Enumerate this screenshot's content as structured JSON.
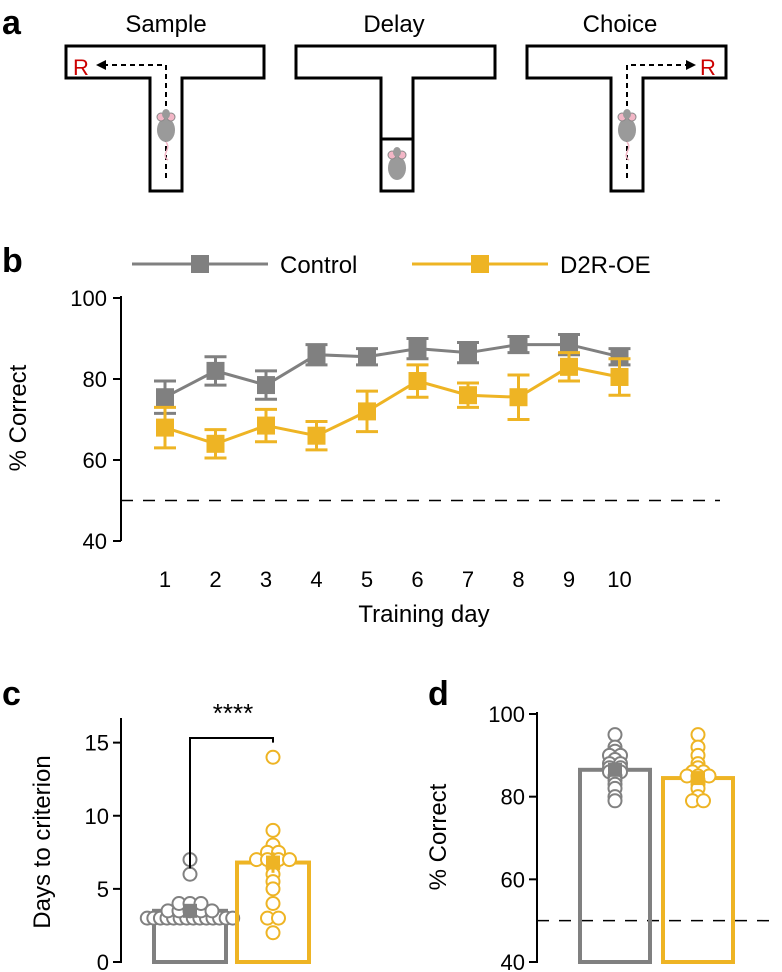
{
  "colors": {
    "control": "#808080",
    "d2r": "#EEB424",
    "reward": "#CC0000",
    "axis": "#000000"
  },
  "panel_a": {
    "label": "a",
    "titles": [
      "Sample",
      "Delay",
      "Choice"
    ],
    "reward_label": "R"
  },
  "panel_b": {
    "label": "b",
    "legend": [
      "Control",
      "D2R-OE"
    ]
  },
  "panel_c": {
    "label": "c",
    "significance": "****"
  },
  "panel_d": {
    "label": "d"
  },
  "chart_data": [
    {
      "panel": "b",
      "type": "line",
      "xlabel": "Training day",
      "ylabel": "% Correct",
      "x": [
        1,
        2,
        3,
        4,
        5,
        6,
        7,
        8,
        9,
        10
      ],
      "ylim": [
        40,
        100
      ],
      "yticks": [
        40,
        60,
        80,
        100
      ],
      "chance_level": 50,
      "series": [
        {
          "name": "Control",
          "values": [
            75.5,
            82,
            78.5,
            86,
            85.5,
            87.5,
            86.5,
            88.5,
            88.5,
            85.5
          ],
          "errors": [
            4,
            3.5,
            3.5,
            2.5,
            2,
            2.5,
            2.5,
            2,
            2.5,
            2
          ]
        },
        {
          "name": "D2R-OE",
          "values": [
            68,
            64,
            68.5,
            66,
            72,
            79.5,
            76,
            75.5,
            83,
            80.5
          ],
          "errors": [
            5,
            3.5,
            4,
            3.5,
            5,
            4,
            3,
            5.5,
            3.5,
            4.5
          ]
        }
      ]
    },
    {
      "panel": "c",
      "type": "bar",
      "ylabel": "Days to criterion",
      "categories": [
        "Control",
        "D2R-OE"
      ],
      "values": [
        3.5,
        6.8
      ],
      "errors": [
        0.3,
        0.7
      ],
      "ylim": [
        0,
        16
      ],
      "yticks": [
        0,
        5,
        10,
        15
      ],
      "points": [
        [
          3,
          3,
          3,
          3,
          3,
          3,
          3,
          3,
          3,
          3,
          3,
          3,
          3,
          3,
          3.5,
          3.5,
          3.5,
          3.5,
          3.5,
          4,
          4,
          4,
          6,
          7
        ],
        [
          14,
          9,
          8,
          7.5,
          7.5,
          7,
          7,
          7,
          7,
          6.5,
          6,
          5.5,
          5,
          4,
          3,
          3,
          2
        ]
      ]
    },
    {
      "panel": "d",
      "type": "bar",
      "ylabel": "% Correct",
      "categories": [
        "Control",
        "D2R-OE"
      ],
      "values": [
        86.5,
        84.5
      ],
      "errors": [
        1.2,
        1.4
      ],
      "ylim": [
        40,
        100
      ],
      "yticks": [
        40,
        60,
        80,
        100
      ],
      "chance_level": 50,
      "points": [
        [
          95,
          92,
          91,
          90,
          90,
          89,
          88,
          88,
          87,
          87,
          86,
          86,
          85,
          84,
          83,
          82,
          80,
          79
        ],
        [
          95,
          92,
          90,
          88,
          87,
          86,
          86,
          85,
          85,
          85,
          84,
          83,
          82,
          80,
          79,
          79
        ]
      ]
    }
  ]
}
